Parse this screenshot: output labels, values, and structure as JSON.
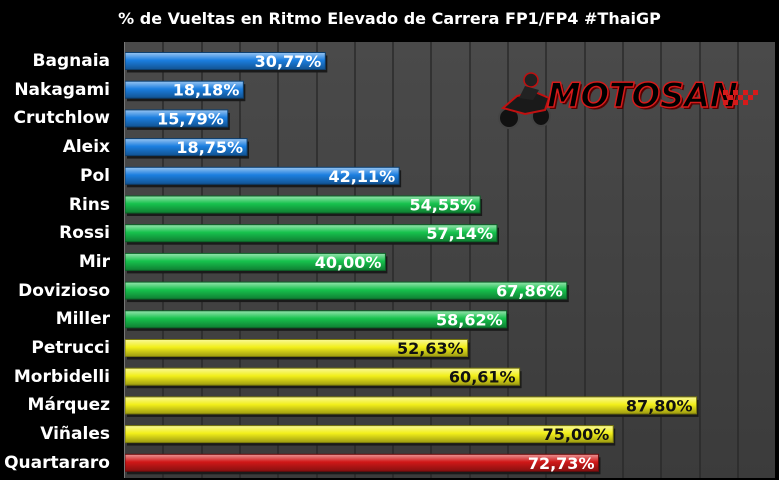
{
  "chart_data": {
    "type": "bar",
    "orientation": "horizontal",
    "title": "% de Vueltas en Ritmo Elevado de Carrera FP1/FP4 #ThaiGP",
    "categories": [
      "Bagnaia",
      "Nakagami",
      "Crutchlow",
      "Aleix",
      "Pol",
      "Rins",
      "Rossi",
      "Mir",
      "Dovizioso",
      "Miller",
      "Petrucci",
      "Morbidelli",
      "Márquez",
      "Viñales",
      "Quartararo"
    ],
    "values": [
      30.77,
      18.18,
      15.79,
      18.75,
      42.11,
      54.55,
      57.14,
      40.0,
      67.86,
      58.62,
      52.63,
      60.61,
      87.8,
      75.0,
      72.73
    ],
    "value_labels": [
      "30,77%",
      "18,18%",
      "15,79%",
      "18,75%",
      "42,11%",
      "54,55%",
      "57,14%",
      "40,00%",
      "67,86%",
      "58,62%",
      "52,63%",
      "60,61%",
      "87,80%",
      "75,00%",
      "72,73%"
    ],
    "bar_colors": [
      "#1c7fe0",
      "#1c7fe0",
      "#1c7fe0",
      "#1c7fe0",
      "#1c7fe0",
      "#17c24d",
      "#17c24d",
      "#17c24d",
      "#17c24d",
      "#17c24d",
      "#f2ef1a",
      "#f2ef1a",
      "#f2ef1a",
      "#f2ef1a",
      "#d01818"
    ],
    "xlim": [
      0,
      100
    ],
    "grid": true,
    "legend": "none",
    "xlabel": "",
    "ylabel": ""
  },
  "logo": {
    "text": "MOTOSAN"
  },
  "colors": {
    "background": "#000000",
    "plot_area": "#444444",
    "gridline": "#2a2a2a"
  }
}
